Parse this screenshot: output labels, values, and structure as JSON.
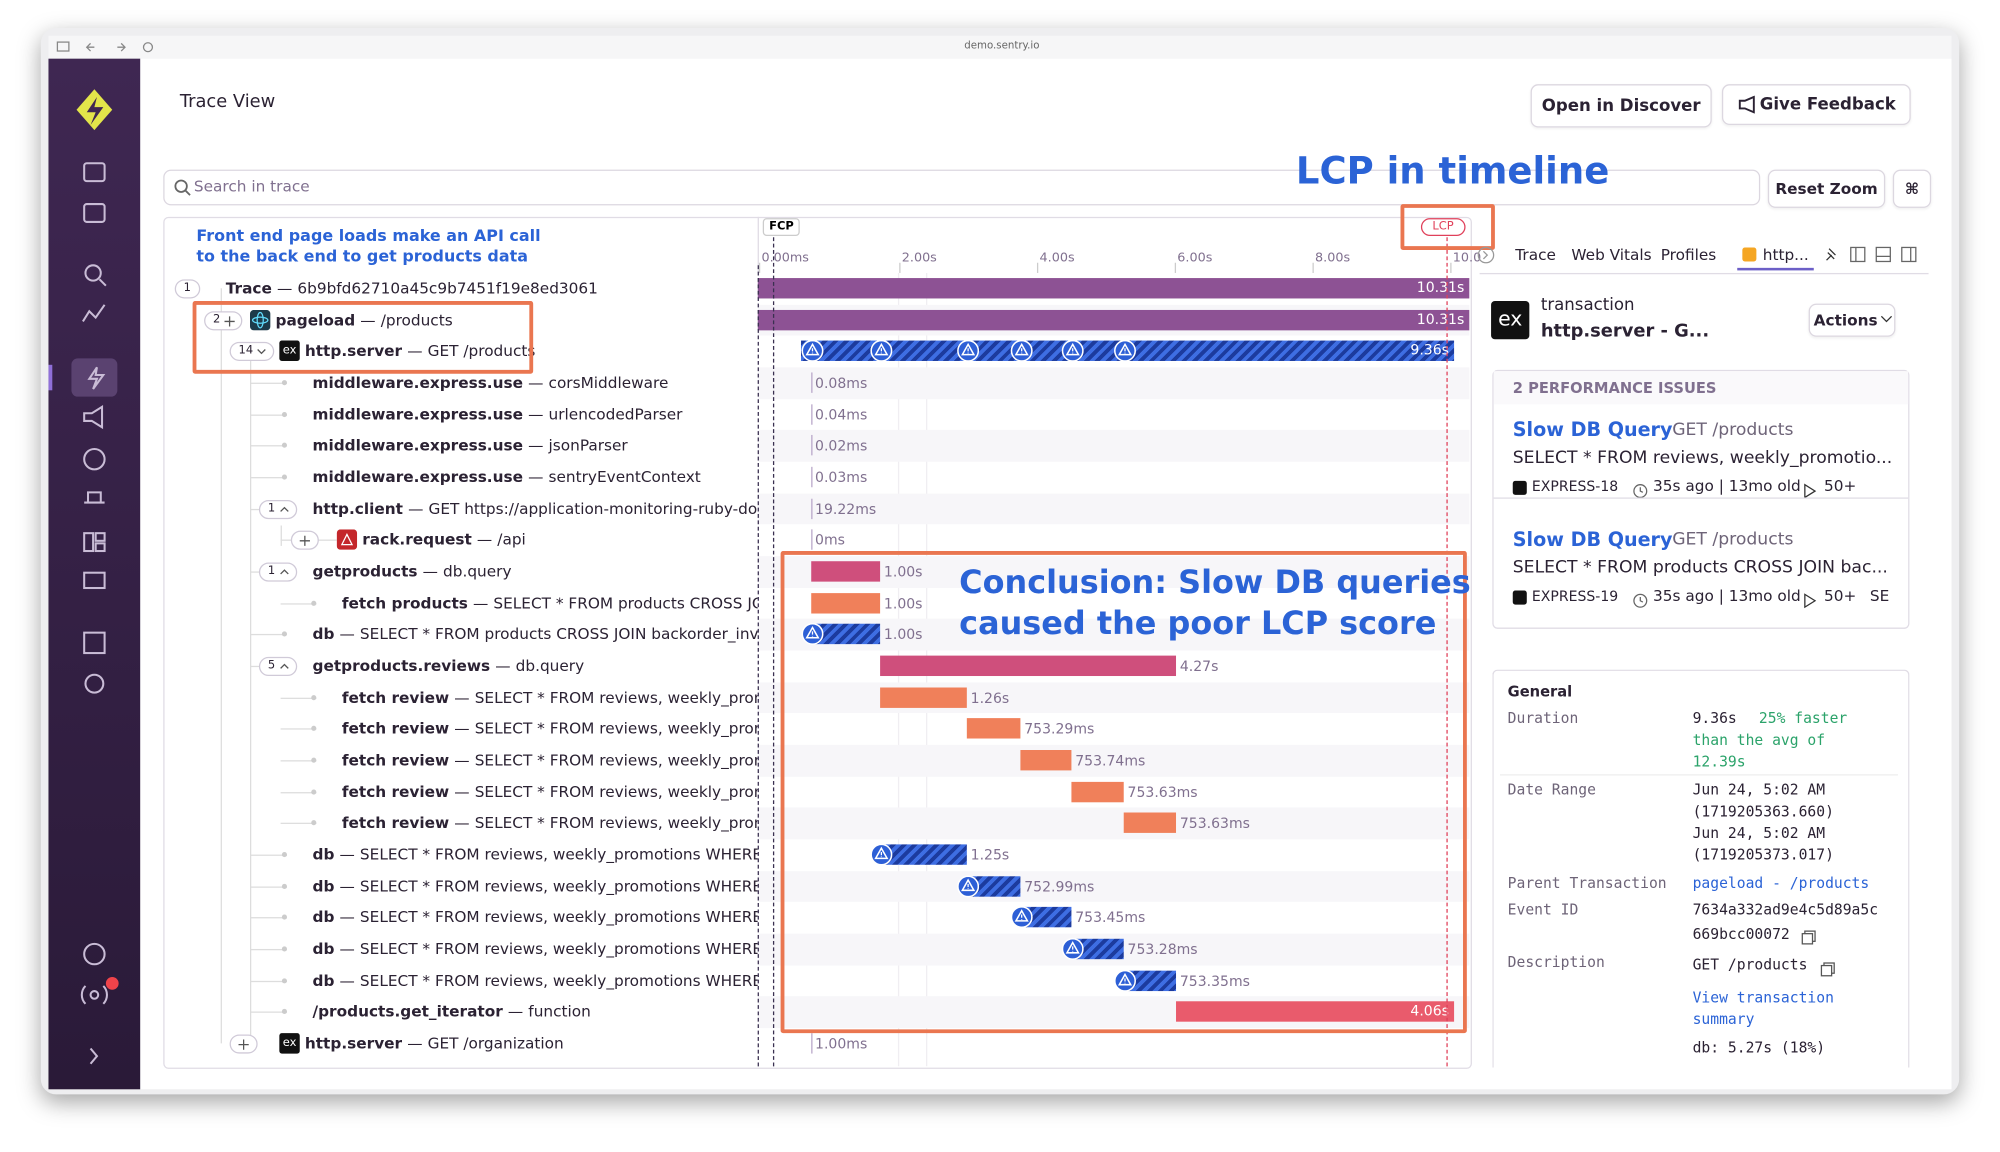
{
  "browser": {
    "url": "demo.sentry.io"
  },
  "header": {
    "title": "Trace View",
    "open_discover": "Open in Discover",
    "feedback": "Give Feedback"
  },
  "search": {
    "placeholder": "Search in trace",
    "reset": "Reset Zoom",
    "shortcut": "⌘"
  },
  "annotations": {
    "lcp_callout": "LCP in timeline",
    "api_note": [
      "Front end page loads make an API call",
      "to the back end to get products data"
    ],
    "conclusion": [
      "Conclusion: Slow DB queries",
      "caused the poor LCP score"
    ]
  },
  "timeline": {
    "markers": {
      "fcp": "FCP",
      "lcp": "LCP"
    },
    "ticks": [
      "0.00ms",
      "2.00s",
      "4.00s",
      "6.00s",
      "8.00s",
      "10.0"
    ]
  },
  "separator": "—",
  "rows": [
    {
      "badge": "1",
      "op": "Trace",
      "desc": "6b9bfd62710a45c9b7451f19e8ed3061",
      "duration": "10.31s"
    },
    {
      "badge": "2",
      "op": "pageload",
      "desc": "/products",
      "duration": "10.31s"
    },
    {
      "badge": "14",
      "icon": "ex",
      "op": "http.server",
      "desc": "GET /products",
      "duration": "9.36s"
    },
    {
      "op": "middleware.express.use",
      "desc": "corsMiddleware",
      "duration": "0.08ms"
    },
    {
      "op": "middleware.express.use",
      "desc": "urlencodedParser",
      "duration": "0.04ms"
    },
    {
      "op": "middleware.express.use",
      "desc": "jsonParser",
      "duration": "0.02ms"
    },
    {
      "op": "middleware.express.use",
      "desc": "sentryEventContext",
      "duration": "0.03ms"
    },
    {
      "badge": "1",
      "op": "http.client",
      "desc": "GET https://application-monitoring-ruby-dot-s",
      "duration": "19.22ms"
    },
    {
      "op": "rack.request",
      "desc": "/api",
      "duration": "0ms"
    },
    {
      "badge": "1",
      "op": "getproducts",
      "desc": "db.query",
      "duration": "1.00s"
    },
    {
      "op": "fetch products",
      "desc": "SELECT * FROM products CROSS JOIN",
      "duration": "1.00s"
    },
    {
      "op": "db",
      "desc": "SELECT * FROM products CROSS JOIN backorder_inver",
      "duration": "1.00s"
    },
    {
      "badge": "5",
      "op": "getproducts.reviews",
      "desc": "db.query",
      "duration": "4.27s"
    },
    {
      "op": "fetch review",
      "desc": "SELECT * FROM reviews, weekly_promoti",
      "duration": "1.26s"
    },
    {
      "op": "fetch review",
      "desc": "SELECT * FROM reviews, weekly_promoti",
      "duration": "753.29ms"
    },
    {
      "op": "fetch review",
      "desc": "SELECT * FROM reviews, weekly_promoti",
      "duration": "753.74ms"
    },
    {
      "op": "fetch review",
      "desc": "SELECT * FROM reviews, weekly_promoti",
      "duration": "753.63ms"
    },
    {
      "op": "fetch review",
      "desc": "SELECT * FROM reviews, weekly_promoti",
      "duration": "753.63ms"
    },
    {
      "op": "db",
      "desc": "SELECT * FROM reviews, weekly_promotions WHERE pr",
      "duration": "1.25s"
    },
    {
      "op": "db",
      "desc": "SELECT * FROM reviews, weekly_promotions WHERE pr",
      "duration": "752.99ms"
    },
    {
      "op": "db",
      "desc": "SELECT * FROM reviews, weekly_promotions WHERE pr",
      "duration": "753.45ms"
    },
    {
      "op": "db",
      "desc": "SELECT * FROM reviews, weekly_promotions WHERE pr",
      "duration": "753.28ms"
    },
    {
      "op": "db",
      "desc": "SELECT * FROM reviews, weekly_promotions WHERE pr",
      "duration": "753.35ms"
    },
    {
      "op": "/products.get_iterator",
      "desc": "function",
      "duration": "4.06s"
    },
    {
      "icon": "ex",
      "op": "http.server",
      "desc": "GET /organization",
      "duration": "1.00ms"
    }
  ],
  "panel": {
    "tabs": [
      "Trace",
      "Web Vitals",
      "Profiles",
      "http..."
    ],
    "icon": "ex",
    "kind": "transaction",
    "name": "http.server - G...",
    "actions": "Actions",
    "issues_title": "2 PERFORMANCE ISSUES",
    "issues": [
      {
        "title": "Slow DB Query",
        "path": "GET /products",
        "query": "SELECT * FROM reviews, weekly_promotio...",
        "project": "EXPRESS-18",
        "age": "35s ago | 13mo old",
        "events": "50+"
      },
      {
        "title": "Slow DB Query",
        "path": "GET /products",
        "query": "SELECT * FROM products CROSS JOIN bac...",
        "project": "EXPRESS-19",
        "age": "35s ago | 13mo old",
        "events": "50+",
        "extra": "SE"
      }
    ],
    "general": {
      "title": "General",
      "duration_key": "Duration",
      "duration": "9.36s",
      "duration_note": [
        "25% faster",
        "than the avg of",
        "12.39s"
      ],
      "date_key": "Date Range",
      "dates": [
        "Jun 24, 5:02 AM",
        "(1719205363.660)",
        "Jun 24, 5:02 AM",
        "(1719205373.017)"
      ],
      "parent_key": "Parent Transaction",
      "parent": "pageload - /products",
      "event_key": "Event ID",
      "event": [
        "7634a332ad9e4c5d89a5c",
        "669bcc00072"
      ],
      "desc_key": "Description",
      "desc": "GET /products",
      "summary_link": [
        "View transaction",
        "summary"
      ],
      "db": "db: 5.27s (18%)"
    }
  }
}
